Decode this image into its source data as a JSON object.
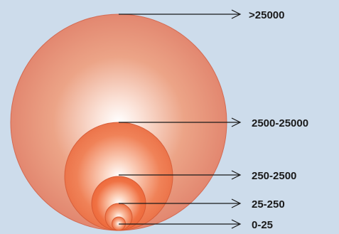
{
  "diagram": {
    "colors": {
      "background": "#cddceb",
      "circle_center": "#ffffff",
      "circle_edge_outer": "#e0826a",
      "circle_edge_inner": "#ee6a3e",
      "stroke": "#c8553a",
      "arrow": "#1a1a1a"
    },
    "levels": [
      {
        "label": ">25000"
      },
      {
        "label": "2500-25000"
      },
      {
        "label": "250-2500"
      },
      {
        "label": "25-250"
      },
      {
        "label": "0-25"
      }
    ]
  }
}
